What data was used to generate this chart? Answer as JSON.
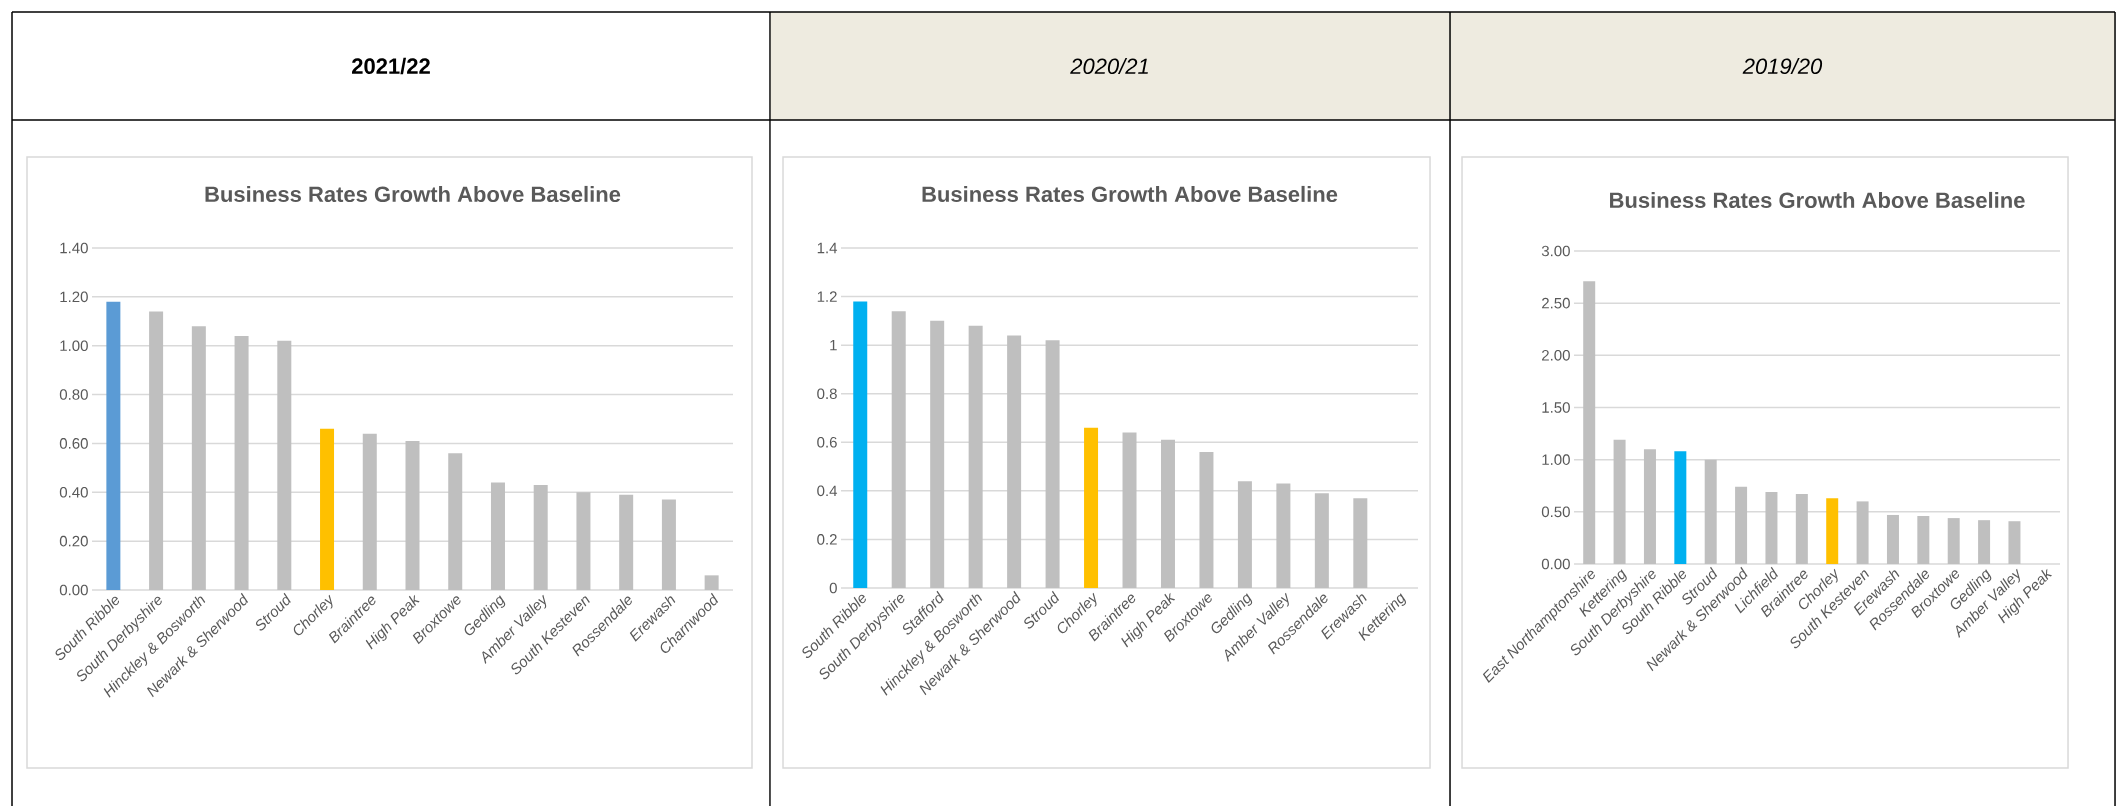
{
  "chart_data": [
    {
      "type": "bar",
      "subtitle": "2021/22",
      "title": "Business Rates Growth Above Baseline",
      "categories": [
        "South Ribble",
        "South Derbyshire",
        "Hinckley & Bosworth",
        "Newark & Sherwood",
        "Stroud",
        "Chorley",
        "Braintree",
        "High Peak",
        "Broxtowe",
        "Gedling",
        "Amber Valley",
        "South Kesteven",
        "Rossendale",
        "Erewash",
        "Charnwood"
      ],
      "values": [
        1.18,
        1.14,
        1.08,
        1.04,
        1.02,
        0.66,
        0.64,
        0.61,
        0.56,
        0.44,
        0.43,
        0.4,
        0.39,
        0.37,
        0.06
      ],
      "colors": [
        "#5b9bd5",
        "#bfbfbf",
        "#bfbfbf",
        "#bfbfbf",
        "#bfbfbf",
        "#ffc000",
        "#bfbfbf",
        "#bfbfbf",
        "#bfbfbf",
        "#bfbfbf",
        "#bfbfbf",
        "#bfbfbf",
        "#bfbfbf",
        "#bfbfbf",
        "#bfbfbf"
      ],
      "ylim": [
        0,
        1.4
      ],
      "yticks": [
        {
          "value": 0,
          "label": "0.00"
        },
        {
          "value": 0.2,
          "label": "0.20"
        },
        {
          "value": 0.4,
          "label": "0.40"
        },
        {
          "value": 0.6,
          "label": "0.60"
        },
        {
          "value": 0.8,
          "label": "0.80"
        },
        {
          "value": 1.0,
          "label": "1.00"
        },
        {
          "value": 1.2,
          "label": "1.20"
        },
        {
          "value": 1.4,
          "label": "1.40"
        }
      ],
      "grid": "y"
    },
    {
      "type": "bar",
      "subtitle": "2020/21",
      "title": "Business Rates Growth Above Baseline",
      "categories": [
        "South Ribble",
        "South Derbyshire",
        "Stafford",
        "Hinckley & Bosworth",
        "Newark & Sherwood",
        "Stroud",
        "Chorley",
        "Braintree",
        "High Peak",
        "Broxtowe",
        "Gedling",
        "Amber Valley",
        "Rossendale",
        "Erewash",
        "Kettering"
      ],
      "values": [
        1.18,
        1.14,
        1.1,
        1.08,
        1.04,
        1.02,
        0.66,
        0.64,
        0.61,
        0.56,
        0.44,
        0.43,
        0.39,
        0.37,
        null
      ],
      "colors": [
        "#00b0f0",
        "#bfbfbf",
        "#bfbfbf",
        "#bfbfbf",
        "#bfbfbf",
        "#bfbfbf",
        "#ffc000",
        "#bfbfbf",
        "#bfbfbf",
        "#bfbfbf",
        "#bfbfbf",
        "#bfbfbf",
        "#bfbfbf",
        "#bfbfbf",
        "#bfbfbf"
      ],
      "ylim": [
        0,
        1.4
      ],
      "yticks": [
        0,
        0.2,
        0.4,
        0.6,
        0.8,
        1,
        1.2,
        1.4
      ],
      "grid": "y"
    },
    {
      "type": "bar",
      "subtitle": "2019/20",
      "title": "Business Rates Growth Above Baseline",
      "categories": [
        "East Northamptonshire",
        "Kettering",
        "South Derbyshire",
        "South Ribble",
        "Stroud",
        "Newark & Sherwood",
        "Lichfield",
        "Braintree",
        "Chorley",
        "South Kesteven",
        "Erewash",
        "Rossendale",
        "Broxtowe",
        "Gedling",
        "Amber Valley",
        "High Peak"
      ],
      "values": [
        2.71,
        1.19,
        1.1,
        1.08,
        1.0,
        0.74,
        0.69,
        0.67,
        0.63,
        0.6,
        0.47,
        0.46,
        0.44,
        0.42,
        0.41,
        null
      ],
      "colors": [
        "#bfbfbf",
        "#bfbfbf",
        "#bfbfbf",
        "#00b0f0",
        "#bfbfbf",
        "#bfbfbf",
        "#bfbfbf",
        "#bfbfbf",
        "#ffc000",
        "#bfbfbf",
        "#bfbfbf",
        "#bfbfbf",
        "#bfbfbf",
        "#bfbfbf",
        "#bfbfbf",
        "#bfbfbf"
      ],
      "ylim": [
        0,
        3.0
      ],
      "yticks": [
        {
          "value": 0,
          "label": "0.00"
        },
        {
          "value": 0.5,
          "label": "0.50"
        },
        {
          "value": 1.0,
          "label": "1.00"
        },
        {
          "value": 1.5,
          "label": "1.50"
        },
        {
          "value": 2.0,
          "label": "2.00"
        },
        {
          "value": 2.5,
          "label": "2.50"
        },
        {
          "value": 3.0,
          "label": "3.00"
        }
      ],
      "grid": "y"
    }
  ]
}
